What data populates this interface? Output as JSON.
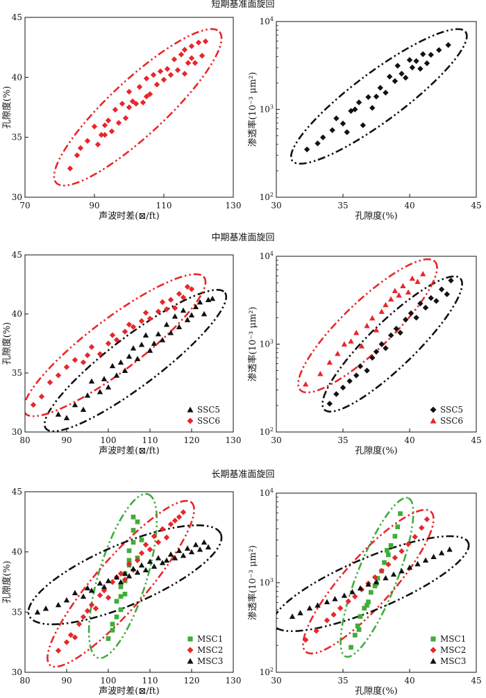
{
  "rows": [
    {
      "title": "短期基准面旋回"
    },
    {
      "title": "中期基准面旋回"
    },
    {
      "title": "长期基准面旋回"
    }
  ],
  "colors": {
    "red": "#e8262a",
    "black": "#111111",
    "green": "#3fad3a"
  },
  "chart_data": [
    {
      "type": "scatter",
      "xlabel": "声波时差(⊠/ft)",
      "ylabel": "孔隙度(%)",
      "xlim": [
        70,
        130
      ],
      "ylim": [
        30,
        45
      ],
      "xticks": [
        70,
        90,
        110,
        130
      ],
      "yticks": [
        30,
        35,
        40,
        45
      ],
      "legend": null,
      "series": [
        {
          "color": "#e8262a",
          "marker": "diamond",
          "x": [
            83,
            85,
            86,
            88,
            90,
            91,
            92,
            93,
            93,
            94,
            95,
            96,
            97,
            98,
            99,
            100,
            100,
            101,
            102,
            103,
            104,
            105,
            105,
            106,
            107,
            108,
            109,
            110,
            111,
            112,
            113,
            114,
            115,
            116,
            116,
            117,
            118,
            118,
            119,
            120,
            121,
            122
          ],
          "y": [
            32.4,
            33.5,
            34.1,
            34.7,
            35.9,
            34.4,
            35.2,
            36.0,
            35.2,
            36.4,
            35.5,
            37.3,
            36.2,
            37.8,
            36.6,
            38.8,
            37.5,
            38.0,
            37.8,
            39.2,
            37.9,
            38.4,
            39.9,
            38.6,
            40.2,
            39.4,
            40.5,
            39.8,
            40.7,
            40.2,
            41.5,
            40.6,
            41.9,
            40.3,
            42.3,
            41.2,
            41.6,
            42.6,
            41.2,
            42.9,
            41.8,
            43.0
          ],
          "ellipse": {
            "p1": [
              79,
              31.2
            ],
            "p2": [
              126,
              43.8
            ],
            "width": 2.2
          }
        }
      ]
    },
    {
      "type": "scatter",
      "xlabel": "孔隙度(%)",
      "ylabel": "渗透率(10⁻³ μm²)",
      "xlim": [
        30,
        45
      ],
      "ylim": [
        100,
        10000
      ],
      "yscale": "log",
      "xticks": [
        30,
        35,
        40,
        45
      ],
      "yticks": [
        100,
        1000,
        10000
      ],
      "legend": null,
      "series": [
        {
          "color": "#111111",
          "marker": "diamond",
          "x": [
            32.3,
            33.1,
            33.5,
            34.2,
            34.5,
            35.0,
            35.3,
            35.6,
            35.9,
            36.2,
            36.5,
            36.9,
            37.2,
            37.5,
            37.8,
            38.2,
            38.5,
            38.9,
            39.1,
            39.4,
            39.7,
            40.0,
            40.2,
            40.5,
            40.8,
            41.0,
            41.3,
            41.6,
            42.2,
            42.9
          ],
          "y": [
            350,
            410,
            480,
            580,
            790,
            690,
            550,
            960,
            1000,
            1200,
            660,
            1380,
            1040,
            1400,
            1760,
            1550,
            2360,
            2100,
            3140,
            2550,
            2290,
            3650,
            3000,
            3550,
            2900,
            4250,
            3350,
            4180,
            4740,
            5400
          ],
          "ellipse": {
            "p1": [
              31.2,
              260
            ],
            "p2": [
              44.2,
              7600
            ],
            "width": 1.6
          }
        }
      ]
    },
    {
      "type": "scatter",
      "xlabel": "声波时差(⊠/ft)",
      "ylabel": "孔隙度(%)",
      "xlim": [
        80,
        130
      ],
      "ylim": [
        30,
        45
      ],
      "xticks": [
        80,
        90,
        100,
        110,
        120,
        130
      ],
      "yticks": [
        30,
        35,
        40,
        45
      ],
      "legend": "bottom-right",
      "series": [
        {
          "name": "SSC5",
          "color": "#111111",
          "marker": "triangle",
          "x": [
            88,
            90,
            92,
            94,
            95,
            96,
            98,
            99,
            100,
            101,
            102,
            103,
            104,
            105,
            106,
            107,
            108,
            109,
            110,
            111,
            112,
            113,
            114,
            115,
            116,
            117,
            118,
            119,
            120,
            121,
            122,
            123,
            124,
            125
          ],
          "y": [
            31.5,
            31.2,
            32.3,
            31.9,
            33.1,
            34.3,
            33.4,
            34.5,
            33.8,
            35.6,
            34.8,
            35.9,
            35.2,
            36.4,
            37.1,
            36.2,
            37.4,
            38.2,
            36.9,
            37.5,
            38.3,
            37.8,
            39.1,
            38.4,
            39.8,
            38.9,
            40.3,
            39.5,
            39.9,
            40.6,
            41.0,
            40.0,
            41.2,
            41.3
          ],
          "ellipse": {
            "p1": [
              85,
              30.3
            ],
            "p2": [
              128,
              41.8
            ],
            "width": 2.0
          }
        },
        {
          "name": "SSC6",
          "color": "#e8262a",
          "marker": "diamond",
          "x": [
            82,
            84,
            86,
            88,
            90,
            92,
            94,
            95,
            96,
            98,
            100,
            101,
            102,
            104,
            105,
            106,
            108,
            109,
            110,
            112,
            113,
            114,
            115,
            116,
            117,
            118,
            119,
            120
          ],
          "y": [
            32.3,
            33.0,
            34.2,
            34.8,
            35.5,
            36.1,
            35.9,
            36.5,
            37.2,
            36.6,
            37.5,
            38.2,
            37.8,
            38.5,
            39.1,
            38.9,
            39.4,
            40.1,
            39.6,
            40.2,
            41.0,
            40.4,
            41.2,
            40.5,
            41.7,
            41.4,
            42.3,
            42.1
          ],
          "ellipse": {
            "p1": [
              80,
              31.6
            ],
            "p2": [
              123,
              43.1
            ],
            "width": 2.1
          }
        }
      ]
    },
    {
      "type": "scatter",
      "xlabel": "孔隙度(%)",
      "ylabel": "渗透率(10⁻³ μm²)",
      "xlim": [
        30,
        45
      ],
      "ylim": [
        100,
        10000
      ],
      "yscale": "log",
      "xticks": [
        30,
        35,
        40,
        45
      ],
      "yticks": [
        100,
        1000,
        10000
      ],
      "legend": "bottom-right",
      "series": [
        {
          "name": "SSC5",
          "color": "#111111",
          "marker": "diamond",
          "x": [
            34.0,
            34.5,
            35.0,
            35.5,
            36.0,
            36.3,
            36.8,
            37.2,
            37.5,
            37.9,
            38.2,
            38.6,
            39.0,
            39.3,
            39.7,
            40.1,
            40.5,
            40.8,
            41.2,
            41.6,
            42.0,
            42.4,
            42.8,
            43.1
          ],
          "y": [
            210,
            270,
            320,
            380,
            440,
            560,
            500,
            700,
            820,
            1000,
            900,
            1260,
            1500,
            1350,
            1900,
            2250,
            2000,
            2900,
            2600,
            3350,
            3100,
            4200,
            3700,
            5300
          ],
          "ellipse": {
            "p1": [
              33.6,
              180
            ],
            "p2": [
              43.8,
              5600
            ],
            "width": 1.5
          }
        },
        {
          "name": "SSC6",
          "color": "#e8262a",
          "marker": "triangle",
          "x": [
            32.2,
            33.3,
            34.0,
            34.6,
            35.1,
            35.6,
            36.0,
            36.4,
            36.8,
            37.2,
            37.5,
            37.9,
            38.2,
            38.6,
            38.9,
            39.2,
            39.5,
            39.9,
            40.2,
            40.6,
            41.0
          ],
          "y": [
            350,
            460,
            620,
            780,
            1000,
            1080,
            1350,
            950,
            1620,
            1980,
            1450,
            2350,
            2800,
            3250,
            4050,
            3600,
            4600,
            3900,
            5600,
            5150,
            6300
          ],
          "ellipse": {
            "p1": [
              31.8,
              300
            ],
            "p2": [
              41.9,
              8700
            ],
            "width": 1.6
          }
        }
      ]
    },
    {
      "type": "scatter",
      "xlabel": "声波时差(⊠/ft)",
      "ylabel": "孔隙度(%)",
      "xlim": [
        80,
        130
      ],
      "ylim": [
        30,
        45
      ],
      "xticks": [
        80,
        90,
        100,
        110,
        120,
        130
      ],
      "yticks": [
        30,
        35,
        40,
        45
      ],
      "legend": "bottom-right",
      "series": [
        {
          "name": "MSC1",
          "color": "#3fad3a",
          "marker": "square",
          "x": [
            100,
            101,
            102,
            102,
            103,
            103,
            104,
            104,
            105,
            105,
            106,
            106,
            107,
            107,
            108,
            104,
            103,
            101,
            105,
            106
          ],
          "y": [
            32.8,
            33.5,
            34.6,
            35.9,
            36.3,
            37.1,
            38.2,
            37.6,
            38.9,
            40.1,
            40.8,
            41.8,
            42.5,
            39.5,
            41.0,
            36.5,
            35.2,
            34.0,
            39.3,
            42.9
          ],
          "ellipse": {
            "p1": [
              97.5,
              31.2
            ],
            "p2": [
              109.5,
              44.8
            ],
            "width": 1.9
          }
        },
        {
          "name": "MSC2",
          "color": "#e8262a",
          "marker": "diamond",
          "x": [
            88,
            90,
            91,
            92,
            93,
            94,
            95,
            96,
            97,
            98,
            99,
            100,
            101,
            102,
            103,
            104,
            105,
            106,
            107,
            108,
            109,
            110,
            111,
            112,
            113,
            114,
            115,
            116,
            117,
            118
          ],
          "y": [
            31.8,
            32.5,
            33.1,
            32.9,
            34.0,
            34.6,
            35.1,
            35.6,
            35.3,
            36.4,
            36.8,
            36.2,
            37.5,
            37.9,
            38.2,
            37.7,
            39.0,
            38.5,
            39.3,
            39.9,
            40.6,
            40.2,
            41.3,
            40.8,
            41.9,
            41.2,
            42.3,
            42.6,
            42.9,
            43.3
          ],
          "ellipse": {
            "p1": [
              86,
              30.6
            ],
            "p2": [
              120,
              44.1
            ],
            "width": 2.0
          }
        },
        {
          "name": "MSC3",
          "color": "#111111",
          "marker": "triangle",
          "x": [
            83,
            85,
            88,
            90,
            92,
            94,
            95,
            96,
            98,
            99,
            100,
            102,
            103,
            104,
            105,
            106,
            107,
            108,
            109,
            110,
            111,
            112,
            113,
            114,
            115,
            116,
            117,
            118,
            119,
            120,
            121,
            122,
            123,
            124
          ],
          "y": [
            35.0,
            35.3,
            35.6,
            36.0,
            36.6,
            36.3,
            37.0,
            36.8,
            37.4,
            37.1,
            37.6,
            37.9,
            37.5,
            38.2,
            38.0,
            38.6,
            38.3,
            38.9,
            38.5,
            39.2,
            38.8,
            39.5,
            39.1,
            39.3,
            39.8,
            39.5,
            40.1,
            39.7,
            40.3,
            40.0,
            40.6,
            40.2,
            40.8,
            40.4
          ],
          "ellipse": {
            "p1": [
              81,
              34.7
            ],
            "p2": [
              127,
              41.5
            ],
            "width": 2.4
          }
        }
      ]
    },
    {
      "type": "scatter",
      "xlabel": "孔隙度(%)",
      "ylabel": "渗透率(10⁻³ μm²)",
      "xlim": [
        30,
        45
      ],
      "ylim": [
        100,
        10000
      ],
      "yscale": "log",
      "xticks": [
        30,
        35,
        40,
        45
      ],
      "yticks": [
        100,
        1000,
        10000
      ],
      "legend": "bottom-right",
      "series": [
        {
          "name": "MSC1",
          "color": "#3fad3a",
          "marker": "square",
          "x": [
            35.6,
            35.9,
            36.1,
            36.3,
            36.6,
            36.9,
            37.1,
            37.4,
            37.6,
            37.9,
            38.1,
            38.4,
            38.6,
            38.9,
            39.1,
            36.2,
            36.8,
            37.5,
            38.3,
            39.3
          ],
          "y": [
            190,
            260,
            330,
            420,
            520,
            610,
            780,
            920,
            1120,
            1350,
            1680,
            2050,
            2600,
            3300,
            4200,
            300,
            560,
            980,
            2300,
            5900
          ],
          "ellipse": {
            "p1": [
              35.2,
              150
            ],
            "p2": [
              39.9,
              8800
            ],
            "width": 1.3
          }
        },
        {
          "name": "MSC2",
          "color": "#e8262a",
          "marker": "diamond",
          "x": [
            32.2,
            33.0,
            33.8,
            34.3,
            34.8,
            35.4,
            35.9,
            36.4,
            36.9,
            37.4,
            37.9,
            38.4,
            38.9,
            39.4,
            39.9,
            40.4,
            40.9,
            41.3
          ],
          "y": [
            230,
            290,
            380,
            440,
            520,
            620,
            700,
            840,
            980,
            1150,
            1360,
            1600,
            1900,
            2250,
            2700,
            3250,
            4100,
            5100
          ],
          "ellipse": {
            "p1": [
              32.2,
              170
            ],
            "p2": [
              41.6,
              6200
            ],
            "width": 1.6
          }
        },
        {
          "name": "MSC3",
          "color": "#111111",
          "marker": "triangle",
          "x": [
            31.2,
            31.8,
            32.5,
            33.1,
            33.8,
            34.4,
            35.1,
            35.7,
            36.3,
            36.9,
            37.5,
            38.2,
            38.8,
            39.4,
            40.0,
            40.6,
            41.2,
            41.8,
            42.4,
            43.0
          ],
          "y": [
            420,
            460,
            520,
            560,
            610,
            660,
            720,
            790,
            870,
            960,
            1020,
            1130,
            1240,
            1350,
            1480,
            1620,
            1780,
            1950,
            2150,
            2350
          ],
          "ellipse": {
            "p1": [
              29.8,
              340
            ],
            "p2": [
              44.4,
              2800
            ],
            "width": 1.7
          }
        }
      ]
    }
  ]
}
